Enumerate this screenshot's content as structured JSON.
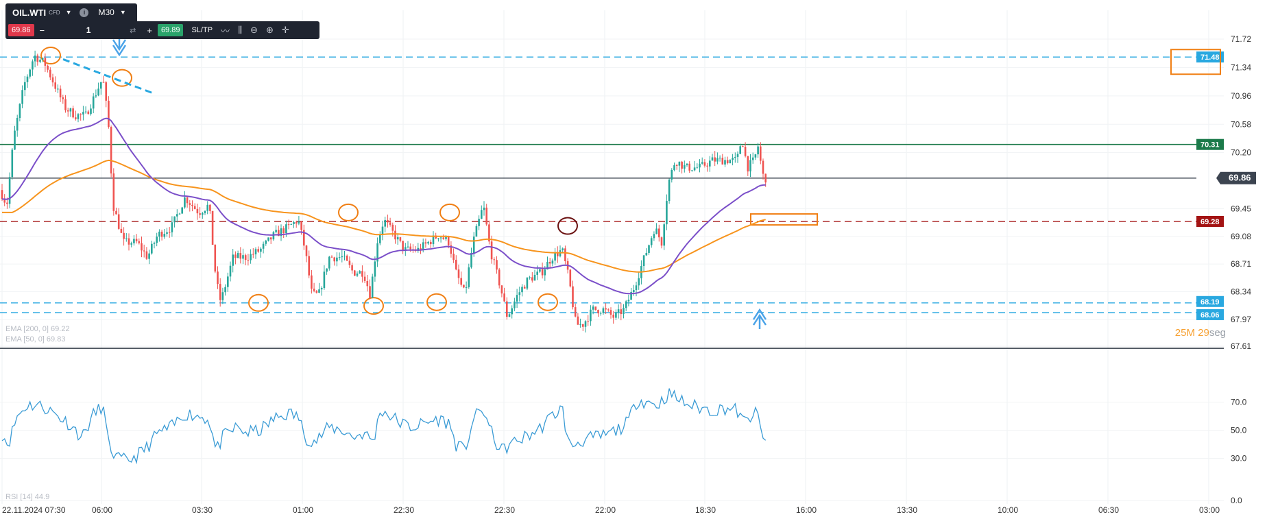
{
  "toolbar": {
    "symbol": "OIL.WTI",
    "instrument_type": "CFD",
    "info": "i",
    "timeframe": "M30",
    "sell_price": "69.86",
    "minus": "−",
    "quantity": "1",
    "plus": "+",
    "buy_price": "69.89",
    "sltp_label": "SL/TP",
    "icons": [
      "caret-down-icon",
      "info-icon",
      "sync-icon",
      "line-chart-icon",
      "indicator-icon",
      "zoom-out-icon",
      "zoom-in-icon",
      "crosshair-icon"
    ]
  },
  "legends": {
    "ema200": "EMA [200, 0] 69.22",
    "ema50": "EMA [50, 0] 69.83",
    "rsi": "RSI [14] 44.9"
  },
  "countdown": {
    "minutes": "25",
    "m_unit": "M",
    "seconds": "29",
    "s_unit": "seg"
  },
  "colors": {
    "bull": "#26a69a",
    "bear": "#ef5350",
    "ema50": "#7b4fc9",
    "ema200": "#f7941d",
    "rsi": "#3a9bd5",
    "support": "#29a8e0",
    "resistance_green": "#1b7a4a",
    "red_level": "#a31313",
    "annotation": "#f07f14",
    "current": "#3c4450"
  },
  "chart_data": [
    {
      "type": "candlestick",
      "title": "",
      "y_ticks": [
        "71.72",
        "71.34",
        "70.96",
        "70.58",
        "70.20",
        "69.45",
        "69.08",
        "68.71",
        "68.34",
        "67.97",
        "67.61"
      ],
      "ylim": [
        67.61,
        71.72
      ],
      "x_ticks": [
        "22.11.2024 07:30",
        "06:00",
        "03:30",
        "01:00",
        "22:30",
        "22:30",
        "22:00",
        "18:30",
        "16:00",
        "13:30",
        "10:00",
        "06:30",
        "03:00"
      ],
      "levels": [
        {
          "label": "71.48",
          "value": 71.48,
          "style": "dashed",
          "color": "#29a8e0"
        },
        {
          "label": "70.31",
          "value": 70.31,
          "style": "solid",
          "color": "#1b7a4a"
        },
        {
          "label": "69.86",
          "value": 69.86,
          "style": "solid",
          "color": "#3c4450"
        },
        {
          "label": "69.28",
          "value": 69.28,
          "style": "dashed",
          "color": "#a31313"
        },
        {
          "label": "68.19",
          "value": 68.19,
          "style": "dashed",
          "color": "#29a8e0"
        },
        {
          "label": "68.06",
          "value": 68.06,
          "style": "dashed",
          "color": "#29a8e0"
        }
      ],
      "anchors": [
        [
          0,
          69.7
        ],
        [
          10,
          69.5
        ],
        [
          20,
          70.4
        ],
        [
          35,
          71.1
        ],
        [
          50,
          71.5
        ],
        [
          65,
          71.4
        ],
        [
          80,
          71.1
        ],
        [
          95,
          70.8
        ],
        [
          110,
          70.7
        ],
        [
          125,
          70.7
        ],
        [
          140,
          71.0
        ],
        [
          150,
          71.2
        ],
        [
          158,
          70.6
        ],
        [
          165,
          69.5
        ],
        [
          180,
          69.0
        ],
        [
          200,
          69.0
        ],
        [
          215,
          68.8
        ],
        [
          230,
          69.1
        ],
        [
          250,
          69.2
        ],
        [
          270,
          69.6
        ],
        [
          290,
          69.4
        ],
        [
          305,
          69.5
        ],
        [
          315,
          68.5
        ],
        [
          322,
          68.2
        ],
        [
          340,
          68.8
        ],
        [
          360,
          68.8
        ],
        [
          380,
          68.9
        ],
        [
          400,
          69.1
        ],
        [
          420,
          69.2
        ],
        [
          435,
          69.3
        ],
        [
          445,
          68.9
        ],
        [
          455,
          68.3
        ],
        [
          465,
          68.3
        ],
        [
          480,
          68.8
        ],
        [
          500,
          68.8
        ],
        [
          515,
          68.6
        ],
        [
          530,
          68.6
        ],
        [
          540,
          68.3
        ],
        [
          550,
          69.0
        ],
        [
          560,
          69.3
        ],
        [
          575,
          69.1
        ],
        [
          590,
          68.9
        ],
        [
          610,
          68.9
        ],
        [
          625,
          69.0
        ],
        [
          640,
          69.1
        ],
        [
          655,
          69.0
        ],
        [
          665,
          68.6
        ],
        [
          678,
          68.3
        ],
        [
          690,
          69.0
        ],
        [
          705,
          69.5
        ],
        [
          715,
          68.9
        ],
        [
          730,
          68.4
        ],
        [
          740,
          68.0
        ],
        [
          755,
          68.3
        ],
        [
          770,
          68.5
        ],
        [
          790,
          68.6
        ],
        [
          805,
          68.8
        ],
        [
          820,
          68.9
        ],
        [
          830,
          68.5
        ],
        [
          840,
          67.9
        ],
        [
          850,
          67.9
        ],
        [
          865,
          68.1
        ],
        [
          880,
          68.1
        ],
        [
          895,
          68.0
        ],
        [
          910,
          68.1
        ],
        [
          925,
          68.4
        ],
        [
          940,
          68.8
        ],
        [
          955,
          69.2
        ],
        [
          965,
          69.0
        ],
        [
          975,
          69.8
        ],
        [
          985,
          70.1
        ],
        [
          1000,
          70.0
        ],
        [
          1020,
          70.0
        ],
        [
          1040,
          70.1
        ],
        [
          1060,
          70.1
        ],
        [
          1075,
          70.1
        ],
        [
          1082,
          70.4
        ],
        [
          1090,
          70.0
        ],
        [
          1100,
          70.1
        ],
        [
          1106,
          70.3
        ],
        [
          1112,
          69.9
        ],
        [
          1116,
          69.86
        ]
      ]
    },
    {
      "type": "line",
      "title": "",
      "y_ticks": [
        "70.0",
        "50.0",
        "30.0",
        "0.0"
      ],
      "ylim": [
        0,
        100
      ],
      "anchors": [
        [
          0,
          50
        ],
        [
          12,
          40
        ],
        [
          25,
          60
        ],
        [
          40,
          68
        ],
        [
          55,
          68
        ],
        [
          70,
          65
        ],
        [
          85,
          60
        ],
        [
          100,
          55
        ],
        [
          120,
          45
        ],
        [
          135,
          60
        ],
        [
          150,
          68
        ],
        [
          158,
          40
        ],
        [
          170,
          30
        ],
        [
          185,
          28
        ],
        [
          200,
          32
        ],
        [
          215,
          38
        ],
        [
          230,
          48
        ],
        [
          250,
          52
        ],
        [
          270,
          62
        ],
        [
          290,
          60
        ],
        [
          305,
          58
        ],
        [
          315,
          35
        ],
        [
          325,
          45
        ],
        [
          345,
          52
        ],
        [
          360,
          48
        ],
        [
          380,
          50
        ],
        [
          400,
          58
        ],
        [
          420,
          62
        ],
        [
          435,
          60
        ],
        [
          445,
          45
        ],
        [
          460,
          42
        ],
        [
          480,
          52
        ],
        [
          500,
          50
        ],
        [
          515,
          45
        ],
        [
          530,
          48
        ],
        [
          545,
          42
        ],
        [
          555,
          65
        ],
        [
          570,
          60
        ],
        [
          585,
          55
        ],
        [
          600,
          52
        ],
        [
          620,
          55
        ],
        [
          640,
          58
        ],
        [
          655,
          55
        ],
        [
          665,
          40
        ],
        [
          678,
          35
        ],
        [
          690,
          58
        ],
        [
          705,
          65
        ],
        [
          715,
          50
        ],
        [
          730,
          35
        ],
        [
          745,
          40
        ],
        [
          765,
          45
        ],
        [
          785,
          50
        ],
        [
          805,
          60
        ],
        [
          820,
          66
        ],
        [
          830,
          38
        ],
        [
          845,
          42
        ],
        [
          860,
          44
        ],
        [
          880,
          46
        ],
        [
          900,
          50
        ],
        [
          915,
          55
        ],
        [
          930,
          72
        ],
        [
          945,
          70
        ],
        [
          960,
          68
        ],
        [
          975,
          76
        ],
        [
          990,
          72
        ],
        [
          1005,
          68
        ],
        [
          1020,
          66
        ],
        [
          1040,
          64
        ],
        [
          1060,
          66
        ],
        [
          1075,
          64
        ],
        [
          1085,
          55
        ],
        [
          1095,
          60
        ],
        [
          1105,
          62
        ],
        [
          1112,
          42
        ],
        [
          1116,
          45
        ]
      ]
    }
  ]
}
